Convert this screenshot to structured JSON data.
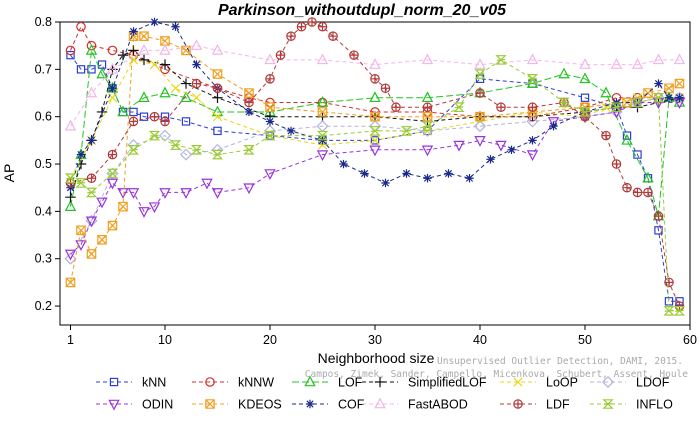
{
  "chart_data": {
    "type": "line",
    "title": "Parkinson_withoutdupl_norm_20_v05",
    "xlabel": "Neighborhood size",
    "ylabel": "AP",
    "xlim": [
      0,
      60
    ],
    "ylim": [
      0.16,
      0.8
    ],
    "xticks": [
      "1",
      "10",
      "20",
      "30",
      "40",
      "50",
      "60"
    ],
    "yticks": [
      "0.2",
      "0.3",
      "0.4",
      "0.5",
      "0.6",
      "0.7",
      "0.8"
    ],
    "grid": false,
    "legend_position": "bottom",
    "watermark": [
      "Unsupervised Outlier Detection, DAMI, 2015.",
      "Campos, Zimek, Sander, Campello, Micenkova, Schubert, Assent, Houle"
    ],
    "series": [
      {
        "name": "kNN",
        "color": "#2e3fd6",
        "marker": "square",
        "dash": "dash",
        "points": [
          [
            1,
            0.73
          ],
          [
            2,
            0.7
          ],
          [
            3,
            0.7
          ],
          [
            4,
            0.71
          ],
          [
            5,
            0.66
          ],
          [
            6,
            0.61
          ],
          [
            7,
            0.61
          ],
          [
            8,
            0.6
          ],
          [
            10,
            0.6
          ],
          [
            12,
            0.59
          ],
          [
            15,
            0.57
          ],
          [
            20,
            0.56
          ],
          [
            25,
            0.55
          ],
          [
            30,
            0.55
          ],
          [
            35,
            0.57
          ],
          [
            40,
            0.68
          ],
          [
            45,
            0.67
          ],
          [
            50,
            0.64
          ],
          [
            53,
            0.62
          ],
          [
            54,
            0.56
          ],
          [
            55,
            0.52
          ],
          [
            56,
            0.47
          ],
          [
            57,
            0.36
          ],
          [
            58,
            0.21
          ],
          [
            59,
            0.21
          ]
        ]
      },
      {
        "name": "kNNW",
        "color": "#d42d2d",
        "marker": "circle",
        "dash": "dash",
        "points": [
          [
            1,
            0.74
          ],
          [
            2,
            0.79
          ],
          [
            3,
            0.75
          ],
          [
            5,
            0.74
          ],
          [
            7,
            0.73
          ],
          [
            10,
            0.7
          ],
          [
            15,
            0.66
          ],
          [
            18,
            0.64
          ],
          [
            20,
            0.63
          ],
          [
            25,
            0.63
          ],
          [
            30,
            0.61
          ],
          [
            35,
            0.61
          ],
          [
            40,
            0.6
          ],
          [
            45,
            0.6
          ],
          [
            50,
            0.62
          ],
          [
            53,
            0.64
          ],
          [
            55,
            0.64
          ],
          [
            57,
            0.64
          ],
          [
            59,
            0.64
          ]
        ]
      },
      {
        "name": "LOF",
        "color": "#22c322",
        "marker": "triangle",
        "dash": "longdash",
        "points": [
          [
            1,
            0.41
          ],
          [
            2,
            0.52
          ],
          [
            3,
            0.74
          ],
          [
            4,
            0.69
          ],
          [
            5,
            0.66
          ],
          [
            6,
            0.61
          ],
          [
            8,
            0.64
          ],
          [
            10,
            0.65
          ],
          [
            12,
            0.64
          ],
          [
            15,
            0.61
          ],
          [
            20,
            0.61
          ],
          [
            25,
            0.63
          ],
          [
            30,
            0.64
          ],
          [
            35,
            0.64
          ],
          [
            40,
            0.65
          ],
          [
            45,
            0.67
          ],
          [
            48,
            0.69
          ],
          [
            50,
            0.68
          ],
          [
            52,
            0.65
          ],
          [
            54,
            0.55
          ],
          [
            56,
            0.47
          ],
          [
            57,
            0.39
          ],
          [
            58,
            0.64
          ],
          [
            59,
            0.63
          ]
        ]
      },
      {
        "name": "SimplifiedLOF",
        "color": "#111111",
        "marker": "plus",
        "dash": "dash",
        "points": [
          [
            1,
            0.43
          ],
          [
            2,
            0.5
          ],
          [
            3,
            0.55
          ],
          [
            4,
            0.61
          ],
          [
            5,
            0.7
          ],
          [
            6,
            0.73
          ],
          [
            7,
            0.74
          ],
          [
            8,
            0.72
          ],
          [
            10,
            0.71
          ],
          [
            12,
            0.67
          ],
          [
            15,
            0.64
          ],
          [
            20,
            0.6
          ],
          [
            25,
            0.6
          ],
          [
            30,
            0.6
          ],
          [
            35,
            0.59
          ],
          [
            40,
            0.6
          ],
          [
            45,
            0.6
          ],
          [
            50,
            0.61
          ],
          [
            53,
            0.62
          ],
          [
            55,
            0.62
          ],
          [
            57,
            0.63
          ],
          [
            59,
            0.64
          ]
        ]
      },
      {
        "name": "LoOP",
        "color": "#e6d91a",
        "marker": "x",
        "dash": "dash",
        "points": [
          [
            1,
            0.47
          ],
          [
            3,
            0.55
          ],
          [
            5,
            0.64
          ],
          [
            7,
            0.72
          ],
          [
            9,
            0.71
          ],
          [
            11,
            0.66
          ],
          [
            13,
            0.64
          ],
          [
            15,
            0.6
          ],
          [
            20,
            0.56
          ],
          [
            25,
            0.54
          ],
          [
            30,
            0.55
          ],
          [
            35,
            0.57
          ],
          [
            40,
            0.59
          ],
          [
            45,
            0.61
          ],
          [
            50,
            0.6
          ],
          [
            52,
            0.62
          ],
          [
            55,
            0.64
          ],
          [
            57,
            0.64
          ],
          [
            59,
            0.64
          ]
        ]
      },
      {
        "name": "LDOF",
        "color": "#b3b3e0",
        "marker": "diamond",
        "dash": "dash",
        "points": [
          [
            1,
            0.3
          ],
          [
            3,
            0.38
          ],
          [
            5,
            0.48
          ],
          [
            7,
            0.54
          ],
          [
            10,
            0.56
          ],
          [
            12,
            0.52
          ],
          [
            15,
            0.53
          ],
          [
            20,
            0.57
          ],
          [
            25,
            0.58
          ],
          [
            30,
            0.58
          ],
          [
            35,
            0.57
          ],
          [
            40,
            0.58
          ],
          [
            45,
            0.59
          ],
          [
            50,
            0.6
          ],
          [
            53,
            0.61
          ],
          [
            55,
            0.63
          ],
          [
            57,
            0.64
          ],
          [
            59,
            0.64
          ]
        ]
      },
      {
        "name": "ODIN",
        "color": "#9933dd",
        "marker": "dtriangle",
        "dash": "dash",
        "points": [
          [
            1,
            0.31
          ],
          [
            2,
            0.33
          ],
          [
            3,
            0.38
          ],
          [
            4,
            0.42
          ],
          [
            5,
            0.46
          ],
          [
            6,
            0.44
          ],
          [
            7,
            0.44
          ],
          [
            8,
            0.4
          ],
          [
            9,
            0.41
          ],
          [
            10,
            0.44
          ],
          [
            12,
            0.44
          ],
          [
            14,
            0.46
          ],
          [
            15,
            0.44
          ],
          [
            18,
            0.45
          ],
          [
            20,
            0.48
          ],
          [
            25,
            0.52
          ],
          [
            30,
            0.53
          ],
          [
            35,
            0.53
          ],
          [
            38,
            0.54
          ],
          [
            40,
            0.55
          ],
          [
            42,
            0.54
          ],
          [
            45,
            0.52
          ],
          [
            47,
            0.59
          ],
          [
            50,
            0.6
          ],
          [
            53,
            0.61
          ],
          [
            55,
            0.63
          ],
          [
            57,
            0.63
          ],
          [
            59,
            0.63
          ]
        ]
      },
      {
        "name": "KDEOS",
        "color": "#f0a020",
        "marker": "boxx",
        "dash": "dash",
        "points": [
          [
            1,
            0.25
          ],
          [
            2,
            0.36
          ],
          [
            3,
            0.31
          ],
          [
            4,
            0.34
          ],
          [
            5,
            0.37
          ],
          [
            6,
            0.41
          ],
          [
            7,
            0.77
          ],
          [
            8,
            0.77
          ],
          [
            10,
            0.76
          ],
          [
            12,
            0.74
          ],
          [
            15,
            0.69
          ],
          [
            18,
            0.65
          ],
          [
            20,
            0.62
          ],
          [
            25,
            0.61
          ],
          [
            30,
            0.6
          ],
          [
            35,
            0.6
          ],
          [
            40,
            0.6
          ],
          [
            45,
            0.61
          ],
          [
            50,
            0.62
          ],
          [
            54,
            0.63
          ],
          [
            56,
            0.65
          ],
          [
            58,
            0.66
          ],
          [
            59,
            0.67
          ]
        ]
      },
      {
        "name": "COF",
        "color": "#1a2a8a",
        "marker": "star",
        "dash": "dash",
        "points": [
          [
            1,
            0.45
          ],
          [
            2,
            0.52
          ],
          [
            3,
            0.55
          ],
          [
            5,
            0.66
          ],
          [
            7,
            0.78
          ],
          [
            9,
            0.8
          ],
          [
            11,
            0.79
          ],
          [
            13,
            0.71
          ],
          [
            15,
            0.66
          ],
          [
            18,
            0.61
          ],
          [
            20,
            0.59
          ],
          [
            22,
            0.57
          ],
          [
            25,
            0.55
          ],
          [
            27,
            0.5
          ],
          [
            29,
            0.48
          ],
          [
            31,
            0.46
          ],
          [
            33,
            0.48
          ],
          [
            35,
            0.47
          ],
          [
            37,
            0.48
          ],
          [
            39,
            0.47
          ],
          [
            41,
            0.51
          ],
          [
            43,
            0.53
          ],
          [
            45,
            0.55
          ],
          [
            47,
            0.58
          ],
          [
            50,
            0.61
          ],
          [
            53,
            0.63
          ],
          [
            55,
            0.63
          ],
          [
            57,
            0.67
          ],
          [
            58,
            0.64
          ],
          [
            59,
            0.64
          ]
        ]
      },
      {
        "name": "FastABOD",
        "color": "#f2b6e8",
        "marker": "triangle",
        "dash": "dash",
        "points": [
          [
            1,
            0.58
          ],
          [
            3,
            0.65
          ],
          [
            5,
            0.7
          ],
          [
            8,
            0.74
          ],
          [
            10,
            0.74
          ],
          [
            13,
            0.75
          ],
          [
            15,
            0.74
          ],
          [
            20,
            0.72
          ],
          [
            25,
            0.72
          ],
          [
            30,
            0.71
          ],
          [
            35,
            0.72
          ],
          [
            40,
            0.71
          ],
          [
            45,
            0.72
          ],
          [
            50,
            0.71
          ],
          [
            53,
            0.71
          ],
          [
            55,
            0.71
          ],
          [
            57,
            0.72
          ],
          [
            59,
            0.72
          ]
        ]
      },
      {
        "name": "LDF",
        "color": "#b23a3a",
        "marker": "circleplus",
        "dash": "dash",
        "points": [
          [
            1,
            0.46
          ],
          [
            3,
            0.47
          ],
          [
            5,
            0.52
          ],
          [
            7,
            0.59
          ],
          [
            9,
            0.6
          ],
          [
            10,
            0.59
          ],
          [
            13,
            0.67
          ],
          [
            15,
            0.66
          ],
          [
            18,
            0.63
          ],
          [
            20,
            0.68
          ],
          [
            21,
            0.73
          ],
          [
            22,
            0.77
          ],
          [
            23,
            0.79
          ],
          [
            24,
            0.8
          ],
          [
            25,
            0.79
          ],
          [
            26,
            0.77
          ],
          [
            28,
            0.73
          ],
          [
            30,
            0.68
          ],
          [
            31,
            0.66
          ],
          [
            32,
            0.62
          ],
          [
            35,
            0.62
          ],
          [
            40,
            0.65
          ],
          [
            42,
            0.62
          ],
          [
            45,
            0.62
          ],
          [
            48,
            0.63
          ],
          [
            50,
            0.6
          ],
          [
            52,
            0.56
          ],
          [
            53,
            0.5
          ],
          [
            54,
            0.45
          ],
          [
            55,
            0.44
          ],
          [
            56,
            0.44
          ],
          [
            57,
            0.39
          ],
          [
            58,
            0.25
          ],
          [
            59,
            0.2
          ]
        ]
      },
      {
        "name": "INFLO",
        "color": "#99cc33",
        "marker": "hourglass",
        "dash": "dash",
        "points": [
          [
            1,
            0.47
          ],
          [
            2,
            0.46
          ],
          [
            3,
            0.44
          ],
          [
            5,
            0.48
          ],
          [
            7,
            0.53
          ],
          [
            9,
            0.56
          ],
          [
            11,
            0.54
          ],
          [
            13,
            0.53
          ],
          [
            15,
            0.52
          ],
          [
            18,
            0.53
          ],
          [
            20,
            0.56
          ],
          [
            25,
            0.56
          ],
          [
            30,
            0.57
          ],
          [
            33,
            0.57
          ],
          [
            35,
            0.58
          ],
          [
            38,
            0.62
          ],
          [
            40,
            0.69
          ],
          [
            42,
            0.72
          ],
          [
            45,
            0.68
          ],
          [
            48,
            0.63
          ],
          [
            50,
            0.61
          ],
          [
            53,
            0.62
          ],
          [
            55,
            0.63
          ],
          [
            57,
            0.64
          ],
          [
            58,
            0.19
          ],
          [
            59,
            0.19
          ]
        ]
      }
    ]
  }
}
